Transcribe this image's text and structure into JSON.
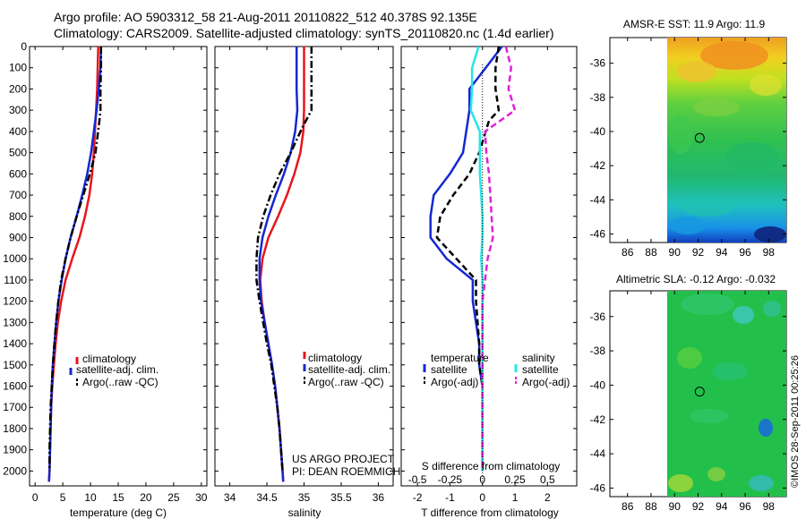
{
  "header": {
    "line1": "Argo profile: AO 5903312_58 21-Aug-2011 20110822_512 40.378S 92.135E",
    "line2": "Climatology: CARS2009. Satellite-adjusted climatology: synTS_20110820.nc (1.4d earlier)"
  },
  "colors": {
    "climatology": "#e8141c",
    "satellite": "#1428d2",
    "argo": "#000000",
    "temp_sat_diff": "#1428d2",
    "sal_sat_diff": "#22e8e8",
    "sal_argo_diff": "#e020d8"
  },
  "credits": {
    "project": "US ARGO PROJECT",
    "pi": "PI: DEAN ROEMMICH",
    "stamp": "©IMOS 28-Sep-2011 00:25:26"
  },
  "chart_data": [
    {
      "type": "line",
      "id": "temperature",
      "xlabel": "temperature (deg C)",
      "xlim": [
        -1,
        31
      ],
      "xticks": [
        0,
        5,
        10,
        15,
        20,
        25,
        30
      ],
      "ylim": [
        2070,
        0
      ],
      "yticks": [
        0,
        100,
        200,
        300,
        400,
        500,
        600,
        700,
        800,
        900,
        1000,
        1100,
        1200,
        1300,
        1400,
        1500,
        1600,
        1700,
        1800,
        1900,
        2000
      ],
      "legend": [
        "climatology",
        "satellite-adj. clim.",
        "Argo(..raw -QC)"
      ],
      "series": [
        {
          "name": "climatology",
          "style": "solid",
          "color_key": "climatology",
          "x": [
            11.4,
            11.3,
            11.2,
            11.0,
            10.8,
            10.6,
            10.3,
            9.8,
            9.0,
            8.0,
            6.7,
            5.5,
            4.7,
            4.1,
            3.7,
            3.4,
            3.1,
            2.9,
            2.8,
            2.7,
            2.6,
            2.5
          ],
          "y": [
            0,
            100,
            200,
            300,
            400,
            500,
            600,
            700,
            800,
            900,
            1000,
            1100,
            1200,
            1300,
            1400,
            1500,
            1600,
            1700,
            1800,
            1900,
            2000,
            2050
          ]
        },
        {
          "name": "satellite-adj. clim.",
          "style": "solid",
          "color_key": "satellite",
          "x": [
            11.9,
            11.8,
            11.5,
            11.1,
            10.6,
            10.1,
            9.4,
            8.5,
            7.5,
            6.4,
            5.5,
            4.8,
            4.2,
            3.8,
            3.5,
            3.2,
            3.0,
            2.9,
            2.8,
            2.7,
            2.6,
            2.5
          ],
          "y": [
            0,
            100,
            200,
            300,
            400,
            500,
            600,
            700,
            800,
            900,
            1000,
            1100,
            1200,
            1300,
            1400,
            1500,
            1600,
            1700,
            1800,
            1900,
            2000,
            2050
          ]
        },
        {
          "name": "Argo(..raw -QC)",
          "style": "dashdot",
          "color_key": "argo",
          "x": [
            11.9,
            11.9,
            11.8,
            11.8,
            11.6,
            10.9,
            9.9,
            8.7,
            7.5,
            6.4,
            5.5,
            4.7,
            4.2,
            3.8,
            3.5,
            3.2,
            3.0,
            2.8,
            2.7,
            2.6,
            2.6
          ],
          "y": [
            0,
            100,
            200,
            300,
            350,
            500,
            600,
            700,
            800,
            900,
            1000,
            1100,
            1200,
            1300,
            1400,
            1500,
            1600,
            1700,
            1800,
            1900,
            2000
          ]
        }
      ]
    },
    {
      "type": "line",
      "id": "salinity",
      "xlabel": "salinity",
      "xlim": [
        33.8,
        36.2
      ],
      "xticks": [
        34,
        34.5,
        35,
        35.5,
        36
      ],
      "ylim": [
        2070,
        0
      ],
      "legend": [
        "climatology",
        "satellite-adj. clim.",
        "Argo(..raw -QC)"
      ],
      "series": [
        {
          "name": "climatology",
          "style": "solid",
          "color_key": "climatology",
          "x": [
            35.0,
            35.0,
            35.0,
            35.0,
            34.99,
            34.95,
            34.87,
            34.77,
            34.65,
            34.52,
            34.44,
            34.41,
            34.43,
            34.47,
            34.52,
            34.57,
            34.61,
            34.64,
            34.67,
            34.69,
            34.71,
            34.72
          ],
          "y": [
            0,
            100,
            200,
            300,
            400,
            500,
            600,
            700,
            800,
            900,
            1000,
            1100,
            1200,
            1300,
            1400,
            1500,
            1600,
            1700,
            1800,
            1900,
            2000,
            2050
          ]
        },
        {
          "name": "satellite-adj. clim.",
          "style": "solid",
          "color_key": "satellite",
          "x": [
            34.9,
            34.9,
            34.9,
            34.91,
            34.88,
            34.82,
            34.73,
            34.62,
            34.52,
            34.44,
            34.4,
            34.4,
            34.42,
            34.47,
            34.52,
            34.57,
            34.61,
            34.64,
            34.67,
            34.69,
            34.71,
            34.72
          ],
          "y": [
            0,
            100,
            200,
            300,
            400,
            500,
            600,
            700,
            800,
            900,
            1000,
            1100,
            1200,
            1300,
            1400,
            1500,
            1600,
            1700,
            1800,
            1900,
            2000,
            2050
          ]
        },
        {
          "name": "Argo(..raw -QC)",
          "style": "dashdot",
          "color_key": "argo",
          "x": [
            35.1,
            35.1,
            35.1,
            35.1,
            34.98,
            34.82,
            34.67,
            34.55,
            34.45,
            34.38,
            34.36,
            34.36,
            34.4,
            34.45,
            34.5,
            34.56,
            34.6,
            34.64,
            34.67,
            34.69,
            34.71
          ],
          "y": [
            0,
            100,
            200,
            300,
            380,
            500,
            600,
            700,
            800,
            900,
            1000,
            1100,
            1200,
            1300,
            1400,
            1500,
            1600,
            1700,
            1800,
            1900,
            2000
          ]
        }
      ]
    },
    {
      "type": "line",
      "id": "difference",
      "xlabel": "T difference from climatology",
      "xlabel_top": "S difference from climatology",
      "xlim": [
        -2.5,
        2.9
      ],
      "xticks": [
        -2,
        -1,
        0,
        1,
        2
      ],
      "xticks_top": [
        -0.5,
        -0.25,
        0,
        0.25,
        0.5
      ],
      "ylim": [
        2070,
        0
      ],
      "legend_groups": [
        "temperature",
        "salinity"
      ],
      "legend": [
        "satellite",
        "Argo(-adj)",
        "satellite",
        "Argo(-adj)"
      ],
      "series": [
        {
          "name": "temperature satellite",
          "style": "solid",
          "color_key": "temp_sat_diff",
          "x": [
            0.6,
            0.1,
            -0.4,
            -0.4,
            -0.5,
            -0.6,
            -1.0,
            -1.5,
            -1.6,
            -1.6,
            -1.1,
            -0.3,
            -0.3,
            -0.2,
            -0.1,
            -0.1,
            0.0,
            0.0,
            0.0,
            0.0,
            0.0
          ],
          "y": [
            0,
            100,
            200,
            300,
            400,
            500,
            600,
            700,
            800,
            900,
            1000,
            1100,
            1200,
            1300,
            1400,
            1500,
            1600,
            1700,
            1800,
            1900,
            2000
          ]
        },
        {
          "name": "temperature Argo(-adj)",
          "style": "dashed",
          "color_key": "argo",
          "x": [
            0.5,
            0.4,
            0.4,
            0.5,
            0.2,
            -0.1,
            -0.4,
            -0.9,
            -1.3,
            -1.4,
            -0.8,
            -0.2,
            -0.2,
            -0.15,
            -0.1,
            -0.1,
            0.0,
            0.0,
            0.0,
            0.0,
            0.0
          ],
          "y": [
            0,
            100,
            200,
            300,
            350,
            500,
            600,
            700,
            800,
            900,
            1000,
            1100,
            1200,
            1300,
            1400,
            1500,
            1600,
            1700,
            1800,
            1900,
            2000
          ]
        },
        {
          "name": "salinity satellite",
          "style": "solid",
          "color_key": "sal_sat_diff",
          "x": [
            -0.03,
            -0.08,
            -0.08,
            -0.09,
            -0.02,
            -0.02,
            -0.02,
            -0.01,
            0.0,
            0.0,
            -0.01,
            0.0,
            0.0,
            0.0,
            0.0,
            0.0,
            0.0,
            0.0,
            0.0,
            0.0,
            0.0
          ],
          "y": [
            0,
            100,
            200,
            300,
            400,
            500,
            600,
            700,
            800,
            900,
            1000,
            1100,
            1200,
            1300,
            1400,
            1500,
            1600,
            1700,
            1800,
            1900,
            2000
          ]
        },
        {
          "name": "salinity Argo(-adj)",
          "style": "dashed",
          "color_key": "sal_argo_diff",
          "x": [
            0.18,
            0.22,
            0.2,
            0.25,
            0.02,
            0.03,
            0.05,
            0.06,
            0.07,
            0.08,
            0.04,
            0.02,
            0.0,
            0.0,
            0.0,
            0.0,
            0.0,
            0.0,
            0.0,
            0.0,
            0.0
          ],
          "y": [
            0,
            100,
            200,
            300,
            400,
            500,
            600,
            700,
            800,
            900,
            1000,
            1100,
            1200,
            1300,
            1400,
            1500,
            1600,
            1700,
            1800,
            1900,
            2000
          ]
        }
      ]
    },
    {
      "type": "heatmap",
      "id": "sst",
      "title": "AMSR-E SST: 11.9 Argo: 11.9",
      "xlim": [
        84.5,
        99.5
      ],
      "ylim": [
        -46.5,
        -34.5
      ],
      "xticks": [
        86,
        88,
        90,
        92,
        94,
        96,
        98
      ],
      "yticks": [
        -36,
        -38,
        -40,
        -42,
        -44,
        -46
      ],
      "data_xrange": [
        90,
        99.5
      ],
      "marker": {
        "lon": 92.135,
        "lat": -40.378
      }
    },
    {
      "type": "heatmap",
      "id": "sla",
      "title": "Altimetric SLA: -0.12 Argo: -0.032",
      "xlim": [
        84.5,
        99.5
      ],
      "ylim": [
        -46.5,
        -34.5
      ],
      "xticks": [
        86,
        88,
        90,
        92,
        94,
        96,
        98
      ],
      "yticks": [
        -36,
        -38,
        -40,
        -42,
        -44,
        -46
      ],
      "data_xrange": [
        90,
        99.5
      ],
      "marker": {
        "lon": 92.135,
        "lat": -40.378
      }
    }
  ]
}
